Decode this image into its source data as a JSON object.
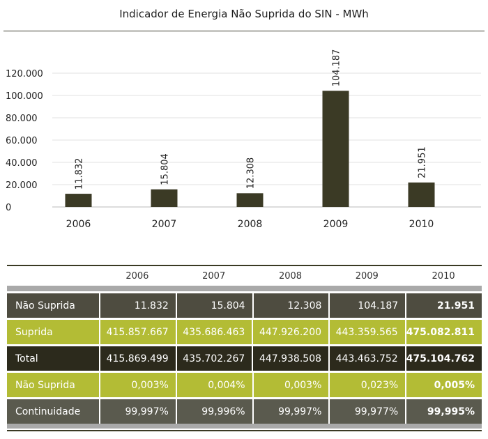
{
  "chart_data": {
    "type": "bar",
    "title": "Indicador de Energia Não Suprida do SIN - MWh",
    "categories": [
      "2006",
      "2007",
      "2008",
      "2009",
      "2010"
    ],
    "values": [
      11832,
      15804,
      12308,
      104187,
      21951
    ],
    "value_labels": [
      "11.832",
      "15.804",
      "12.308",
      "104.187",
      "21.951"
    ],
    "yticks": [
      0,
      20000,
      40000,
      60000,
      80000,
      100000,
      120000
    ],
    "ytick_labels": [
      "0",
      "20.000",
      "40.000",
      "60.000",
      "80.000",
      "100.000",
      "120.000"
    ],
    "ylim": [
      0,
      120000
    ],
    "grid": true,
    "bar_color": "#3b3a25"
  },
  "table": {
    "years": [
      "2006",
      "2007",
      "2008",
      "2009",
      "2010"
    ],
    "rows": [
      {
        "label": "Não Suprida",
        "values": [
          "11.832",
          "15.804",
          "12.308",
          "104.187",
          "21.951"
        ]
      },
      {
        "label": "Suprida",
        "values": [
          "415.857.667",
          "435.686.463",
          "447.926.200",
          "443.359.565",
          "475.082.811"
        ]
      },
      {
        "label": "Total",
        "values": [
          "415.869.499",
          "435.702.267",
          "447.938.508",
          "443.463.752",
          "475.104.762"
        ]
      },
      {
        "label": "Não Suprida",
        "values": [
          "0,003%",
          "0,004%",
          "0,003%",
          "0,023%",
          "0,005%"
        ]
      },
      {
        "label": "Continuidade",
        "values": [
          "99,997%",
          "99,996%",
          "99,997%",
          "99,977%",
          "99,995%"
        ]
      }
    ]
  }
}
